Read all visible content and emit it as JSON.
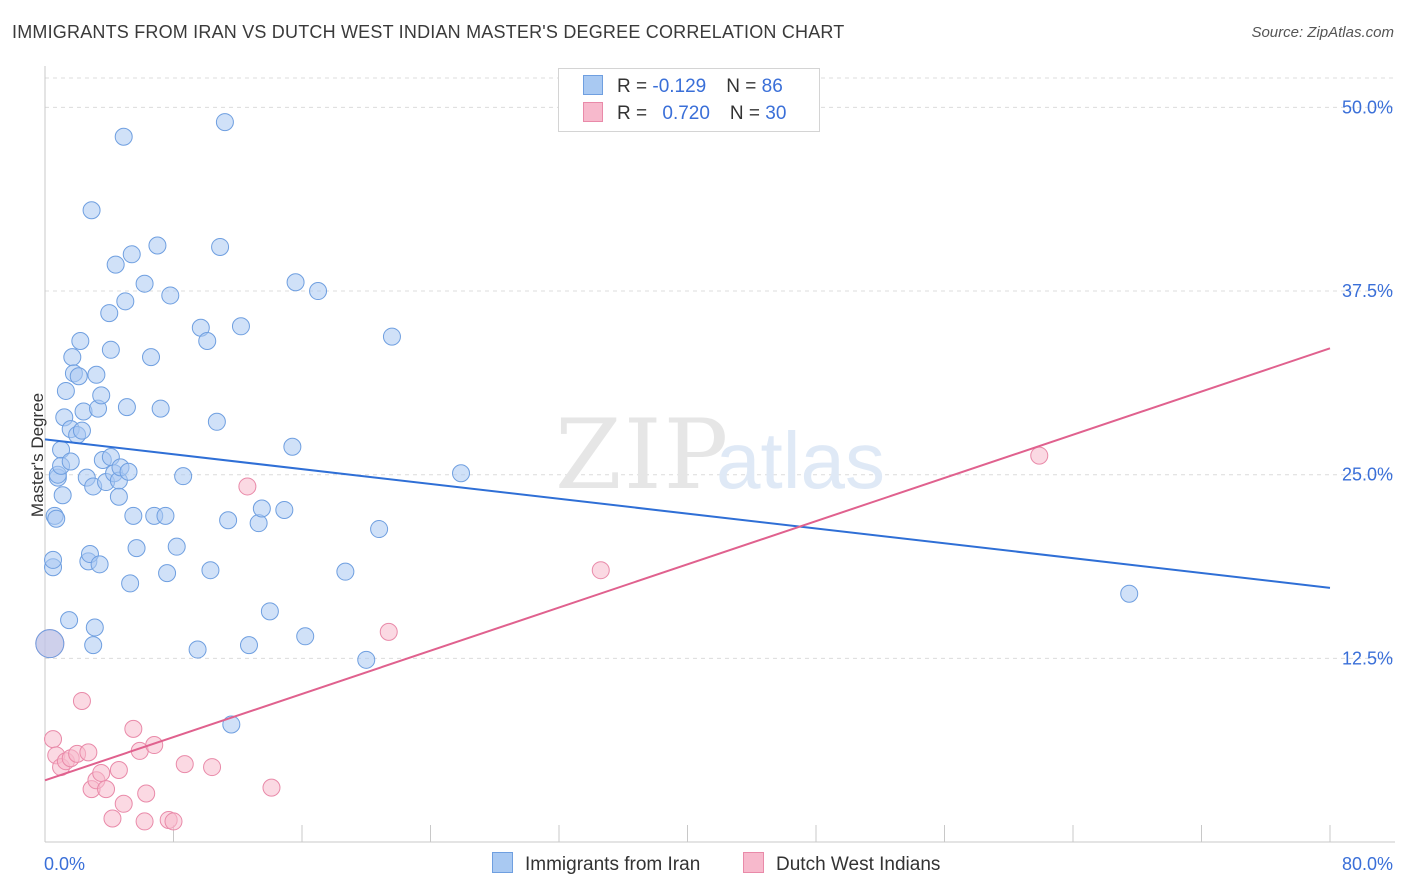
{
  "title": "IMMIGRANTS FROM IRAN VS DUTCH WEST INDIAN MASTER'S DEGREE CORRELATION CHART",
  "source": "Source: ZipAtlas.com",
  "watermark": {
    "zip": "ZIP",
    "atlas": "atlas"
  },
  "legend": {
    "iran": {
      "r_label": "R = ",
      "r_value": "-0.129",
      "n_label": "N = ",
      "n_value": "86"
    },
    "dutch": {
      "r_label": "R = ",
      "r_value": "0.720",
      "n_label": "N = ",
      "n_value": "30"
    }
  },
  "bottom_legend": {
    "iran": "Immigrants from Iran",
    "dutch": "Dutch West Indians"
  },
  "colors": {
    "iran_fill": "#a9c9f2",
    "iran_stroke": "#6f9fe0",
    "iran_line": "#2f6fd6",
    "dutch_fill": "#f7b9cc",
    "dutch_stroke": "#e98aa9",
    "dutch_line": "#e0618e",
    "axis_text": "#3a6fd8",
    "grid": "#dcdcdc"
  },
  "chart_data": {
    "type": "scatter",
    "title": "IMMIGRANTS FROM IRAN VS DUTCH WEST INDIAN MASTER'S DEGREE CORRELATION CHART",
    "xlabel": "",
    "ylabel": "Master's Degree",
    "xlim": [
      0,
      80
    ],
    "ylim": [
      0,
      52
    ],
    "x_tick_labels": [
      "0.0%",
      "80.0%"
    ],
    "y_ticks": [
      12.5,
      25.0,
      37.5,
      50.0
    ],
    "y_tick_labels": [
      "12.5%",
      "25.0%",
      "37.5%",
      "50.0%"
    ],
    "grid": true,
    "series": [
      {
        "name": "Immigrants from Iran",
        "r": -0.129,
        "n": 86,
        "trend": {
          "x": [
            0,
            80
          ],
          "y": [
            27.4,
            17.3
          ]
        },
        "points": [
          {
            "x": 0.3,
            "y": 13.5,
            "size": "large"
          },
          {
            "x": 0.5,
            "y": 18.7
          },
          {
            "x": 0.5,
            "y": 19.2
          },
          {
            "x": 0.6,
            "y": 22.2
          },
          {
            "x": 0.7,
            "y": 22.0
          },
          {
            "x": 0.8,
            "y": 24.8
          },
          {
            "x": 0.8,
            "y": 25.0
          },
          {
            "x": 1.0,
            "y": 26.7
          },
          {
            "x": 1.0,
            "y": 25.6
          },
          {
            "x": 1.1,
            "y": 23.6
          },
          {
            "x": 1.2,
            "y": 28.9
          },
          {
            "x": 1.3,
            "y": 30.7
          },
          {
            "x": 1.5,
            "y": 15.1
          },
          {
            "x": 1.6,
            "y": 28.1
          },
          {
            "x": 1.6,
            "y": 25.9
          },
          {
            "x": 1.7,
            "y": 33.0
          },
          {
            "x": 1.8,
            "y": 31.9
          },
          {
            "x": 2.0,
            "y": 27.7
          },
          {
            "x": 2.1,
            "y": 31.7
          },
          {
            "x": 2.2,
            "y": 34.1
          },
          {
            "x": 2.3,
            "y": 28.0
          },
          {
            "x": 2.4,
            "y": 29.3
          },
          {
            "x": 2.6,
            "y": 24.8
          },
          {
            "x": 2.7,
            "y": 19.1
          },
          {
            "x": 2.8,
            "y": 19.6
          },
          {
            "x": 2.9,
            "y": 43.0
          },
          {
            "x": 3.0,
            "y": 24.2
          },
          {
            "x": 3.0,
            "y": 13.4
          },
          {
            "x": 3.1,
            "y": 14.6
          },
          {
            "x": 3.2,
            "y": 31.8
          },
          {
            "x": 3.3,
            "y": 29.5
          },
          {
            "x": 3.4,
            "y": 18.9
          },
          {
            "x": 3.5,
            "y": 30.4
          },
          {
            "x": 3.6,
            "y": 26.0
          },
          {
            "x": 3.8,
            "y": 24.5
          },
          {
            "x": 4.0,
            "y": 36.0
          },
          {
            "x": 4.1,
            "y": 33.5
          },
          {
            "x": 4.1,
            "y": 26.2
          },
          {
            "x": 4.3,
            "y": 25.1
          },
          {
            "x": 4.4,
            "y": 39.3
          },
          {
            "x": 4.6,
            "y": 24.6
          },
          {
            "x": 4.6,
            "y": 23.5
          },
          {
            "x": 4.7,
            "y": 25.5
          },
          {
            "x": 4.9,
            "y": 48.0
          },
          {
            "x": 5.0,
            "y": 36.8
          },
          {
            "x": 5.1,
            "y": 29.6
          },
          {
            "x": 5.2,
            "y": 25.2
          },
          {
            "x": 5.3,
            "y": 17.6
          },
          {
            "x": 5.4,
            "y": 40.0
          },
          {
            "x": 5.5,
            "y": 22.2
          },
          {
            "x": 5.7,
            "y": 20.0
          },
          {
            "x": 6.2,
            "y": 38.0
          },
          {
            "x": 6.6,
            "y": 33.0
          },
          {
            "x": 6.8,
            "y": 22.2
          },
          {
            "x": 7.0,
            "y": 40.6
          },
          {
            "x": 7.2,
            "y": 29.5
          },
          {
            "x": 7.5,
            "y": 22.2
          },
          {
            "x": 7.6,
            "y": 18.3
          },
          {
            "x": 7.8,
            "y": 37.2
          },
          {
            "x": 8.2,
            "y": 20.1
          },
          {
            "x": 8.6,
            "y": 24.9
          },
          {
            "x": 9.5,
            "y": 13.1
          },
          {
            "x": 9.7,
            "y": 35.0
          },
          {
            "x": 10.1,
            "y": 34.1
          },
          {
            "x": 10.3,
            "y": 18.5
          },
          {
            "x": 10.7,
            "y": 28.6
          },
          {
            "x": 10.9,
            "y": 40.5
          },
          {
            "x": 11.2,
            "y": 49.0
          },
          {
            "x": 11.4,
            "y": 21.9
          },
          {
            "x": 11.6,
            "y": 8.0
          },
          {
            "x": 12.2,
            "y": 35.1
          },
          {
            "x": 12.7,
            "y": 13.4
          },
          {
            "x": 13.3,
            "y": 21.7
          },
          {
            "x": 13.5,
            "y": 22.7
          },
          {
            "x": 14.0,
            "y": 15.7
          },
          {
            "x": 14.9,
            "y": 22.6
          },
          {
            "x": 15.4,
            "y": 26.9
          },
          {
            "x": 15.6,
            "y": 38.1
          },
          {
            "x": 16.2,
            "y": 14.0
          },
          {
            "x": 17.0,
            "y": 37.5
          },
          {
            "x": 18.7,
            "y": 18.4
          },
          {
            "x": 20.0,
            "y": 12.4
          },
          {
            "x": 20.8,
            "y": 21.3
          },
          {
            "x": 21.6,
            "y": 34.4
          },
          {
            "x": 25.9,
            "y": 25.1
          },
          {
            "x": 67.5,
            "y": 16.9
          }
        ]
      },
      {
        "name": "Dutch West Indians",
        "r": 0.72,
        "n": 30,
        "trend": {
          "x": [
            0,
            80
          ],
          "y": [
            4.2,
            33.6
          ]
        },
        "points": [
          {
            "x": 0.3,
            "y": 13.5,
            "size": "large"
          },
          {
            "x": 0.5,
            "y": 7.0
          },
          {
            "x": 0.7,
            "y": 5.9
          },
          {
            "x": 1.0,
            "y": 5.1
          },
          {
            "x": 1.3,
            "y": 5.5
          },
          {
            "x": 1.6,
            "y": 5.7
          },
          {
            "x": 2.0,
            "y": 6.0
          },
          {
            "x": 2.3,
            "y": 9.6
          },
          {
            "x": 2.7,
            "y": 6.1
          },
          {
            "x": 2.9,
            "y": 3.6
          },
          {
            "x": 3.2,
            "y": 4.2
          },
          {
            "x": 3.5,
            "y": 4.7
          },
          {
            "x": 3.8,
            "y": 3.6
          },
          {
            "x": 4.2,
            "y": 1.6
          },
          {
            "x": 4.6,
            "y": 4.9
          },
          {
            "x": 4.9,
            "y": 2.6
          },
          {
            "x": 5.5,
            "y": 7.7
          },
          {
            "x": 5.9,
            "y": 6.2
          },
          {
            "x": 6.2,
            "y": 1.4
          },
          {
            "x": 6.3,
            "y": 3.3
          },
          {
            "x": 6.8,
            "y": 6.6
          },
          {
            "x": 7.7,
            "y": 1.5
          },
          {
            "x": 8.0,
            "y": 1.4
          },
          {
            "x": 8.7,
            "y": 5.3
          },
          {
            "x": 10.4,
            "y": 5.1
          },
          {
            "x": 12.6,
            "y": 24.2
          },
          {
            "x": 14.1,
            "y": 3.7
          },
          {
            "x": 21.4,
            "y": 14.3
          },
          {
            "x": 34.6,
            "y": 18.5
          },
          {
            "x": 61.9,
            "y": 26.3
          }
        ]
      }
    ]
  }
}
